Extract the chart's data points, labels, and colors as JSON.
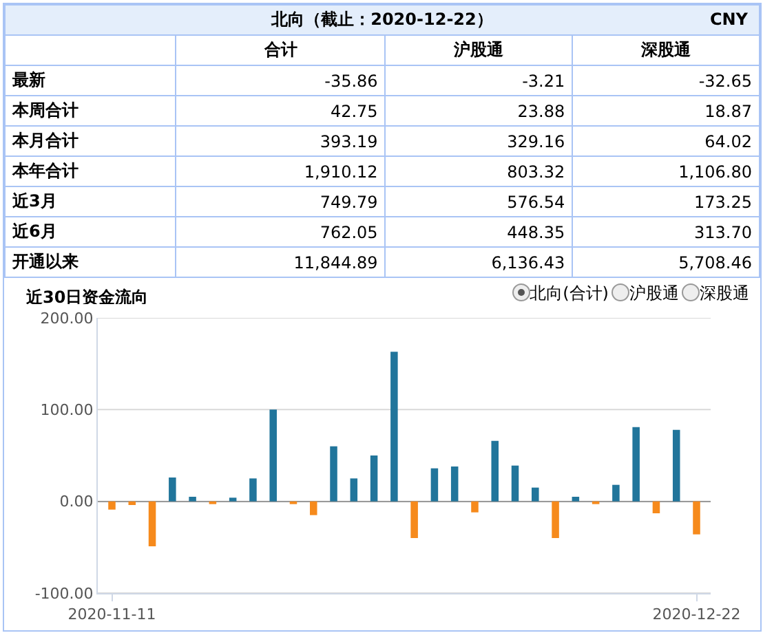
{
  "chart_data": [
    {
      "type": "other",
      "title": "北向（截止：2020-12-22）",
      "annotations": [
        "CNY"
      ],
      "categories": [
        "合计",
        "沪股通",
        "深股通"
      ],
      "y_categories": [
        "最新",
        "本周合计",
        "本月合计",
        "本年合计",
        "近3月",
        "近6月",
        "开通以来"
      ],
      "cell_labels": [
        [
          "-35.86",
          "-3.21",
          "-32.65"
        ],
        [
          "42.75",
          "23.88",
          "18.87"
        ],
        [
          "393.19",
          "329.16",
          "64.02"
        ],
        [
          "1,910.12",
          "803.32",
          "1,106.80"
        ],
        [
          "749.79",
          "576.54",
          "173.25"
        ],
        [
          "762.05",
          "448.35",
          "313.70"
        ],
        [
          "11,844.89",
          "6,136.43",
          "5,708.46"
        ]
      ]
    },
    {
      "type": "bar",
      "title": "近30日资金流向",
      "annotations": [
        "北向(合计)",
        "沪股通",
        "深股通"
      ],
      "categories": [
        "2020-11-11",
        null,
        null,
        null,
        null,
        null,
        null,
        null,
        null,
        null,
        null,
        null,
        null,
        null,
        null,
        null,
        null,
        null,
        null,
        null,
        null,
        null,
        null,
        null,
        null,
        null,
        null,
        null,
        null,
        "2020-12-22"
      ],
      "values": [
        -9,
        -4,
        -49,
        26,
        5,
        -3,
        4,
        25,
        100,
        -3,
        -15,
        60,
        25,
        50,
        163,
        -40,
        36,
        38,
        -12,
        66,
        39,
        15,
        -40,
        5,
        -3,
        18,
        81,
        -13,
        78,
        -36
      ],
      "colors": [
        "#f68a1c",
        "#f68a1c",
        "#f68a1c",
        "#21759b",
        "#21759b",
        "#f68a1c",
        "#21759b",
        "#21759b",
        "#21759b",
        "#f68a1c",
        "#f68a1c",
        "#21759b",
        "#21759b",
        "#21759b",
        "#21759b",
        "#f68a1c",
        "#21759b",
        "#21759b",
        "#f68a1c",
        "#21759b",
        "#21759b",
        "#21759b",
        "#f68a1c",
        "#21759b",
        "#f68a1c",
        "#21759b",
        "#21759b",
        "#f68a1c",
        "#21759b",
        "#f68a1c"
      ],
      "ylim": [
        -100,
        200
      ],
      "yticks": [
        {
          "value": -100,
          "label": "-100.00"
        },
        {
          "value": 0,
          "label": "0.00"
        },
        {
          "value": 100,
          "label": "100.00"
        },
        {
          "value": 200,
          "label": "200.00"
        }
      ],
      "grid": "y"
    }
  ]
}
